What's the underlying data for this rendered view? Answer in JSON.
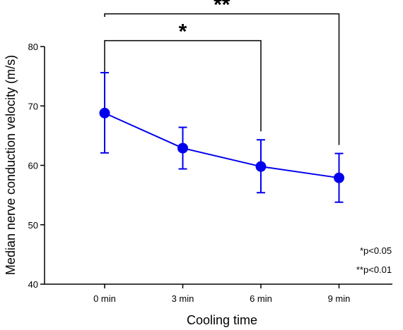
{
  "chart_data": {
    "type": "line",
    "title": "",
    "xlabel": "Cooling time",
    "ylabel": "Median nerve conduction velocity (m/s)",
    "ylim": [
      40,
      80
    ],
    "yticks": [
      "40",
      "50",
      "60",
      "70",
      "80"
    ],
    "categories": [
      "0 min",
      "3 min",
      "6 min",
      "9 min"
    ],
    "series": [
      {
        "values": [
          68.8,
          62.9,
          59.8,
          57.9
        ],
        "error_upper": [
          75.6,
          66.4,
          64.3,
          62.0
        ],
        "error_lower": [
          62.1,
          59.4,
          55.4,
          53.8
        ],
        "color": "#0000ee"
      }
    ],
    "grid": false,
    "significance": [
      {
        "from": "0 min",
        "to": "6 min",
        "bar_y": 81.0,
        "label": "*"
      },
      {
        "from": "0 min",
        "to": "9 min",
        "bar_y": 85.5,
        "label": "**"
      }
    ],
    "legend": {
      "placement": "bottom-right",
      "items": [
        {
          "symbol": "*",
          "text": "p<0.05"
        },
        {
          "symbol": "**",
          "text": "p<0.01"
        }
      ]
    }
  }
}
